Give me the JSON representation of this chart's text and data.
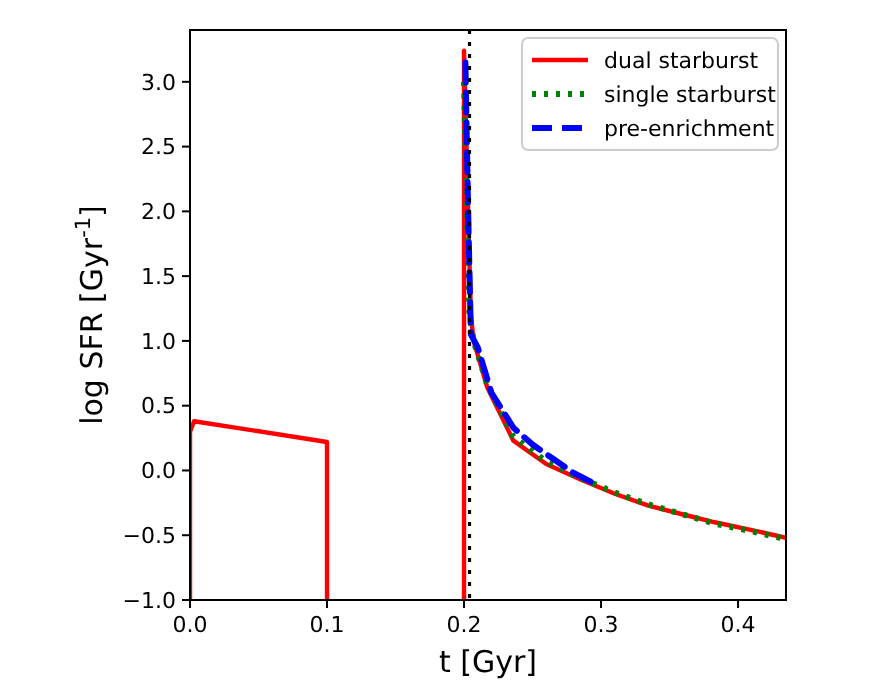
{
  "chart_data": {
    "type": "line",
    "xlabel": "t [Gyr]",
    "ylabel": "log SFR [Gyr$^{-1}$]",
    "xlim": [
      0,
      0.435
    ],
    "ylim": [
      -1.0,
      3.4
    ],
    "xticks": [
      {
        "value": 0,
        "label": "0.0"
      },
      {
        "value": 0.1,
        "label": "0.1"
      },
      {
        "value": 0.2,
        "label": "0.2"
      },
      {
        "value": 0.3,
        "label": "0.3"
      },
      {
        "value": 0.4,
        "label": "0.4"
      }
    ],
    "yticks": [
      {
        "value": -1,
        "label": "−1.0"
      },
      {
        "value": -0.5,
        "label": "−0.5"
      },
      {
        "value": 0,
        "label": "0.0"
      },
      {
        "value": 0.5,
        "label": "0.5"
      },
      {
        "value": 1,
        "label": "1.0"
      },
      {
        "value": 1.5,
        "label": "1.5"
      },
      {
        "value": 2,
        "label": "2.0"
      },
      {
        "value": 2.5,
        "label": "2.5"
      },
      {
        "value": 3,
        "label": "3.0"
      }
    ],
    "legend": "top right",
    "grid": false,
    "ref_lines": [
      {
        "axis": "x",
        "value": 0.204,
        "color": "#000000",
        "line_style": "dotted"
      }
    ],
    "series": [
      {
        "name": "dual starburst",
        "color": "#ff0000",
        "line_style": "solid",
        "x": [
          0,
          0,
          0.003,
          0.1,
          0.1,
          null,
          0.2,
          0.2,
          0.203,
          0.205,
          0.207,
          0.217,
          0.236,
          0.26,
          0.285,
          0.31,
          0.334,
          0.36,
          0.383,
          0.41,
          0.435
        ],
        "values": [
          -1,
          0.3,
          0.38,
          0.22,
          -1,
          null,
          -1,
          3.24,
          2.0,
          1.2,
          1.0,
          0.64,
          0.23,
          0.05,
          -0.07,
          -0.18,
          -0.27,
          -0.34,
          -0.4,
          -0.46,
          -0.52
        ]
      },
      {
        "name": "single starburst",
        "color": "#008000",
        "line_style": "dotted",
        "x": [
          0.2,
          0.202,
          0.204,
          0.207,
          0.217,
          0.236,
          0.26,
          0.285,
          0.31,
          0.334,
          0.36,
          0.383,
          0.41,
          0.435
        ],
        "values": [
          3.0,
          2.0,
          1.2,
          1.0,
          0.66,
          0.26,
          0.07,
          -0.06,
          -0.17,
          -0.26,
          -0.34,
          -0.41,
          -0.47,
          -0.53
        ]
      },
      {
        "name": "pre-enrichment",
        "color": "#0000ff",
        "line_style": "dashed",
        "x": [
          0.201,
          0.203,
          0.205,
          0.21,
          0.22,
          0.236,
          0.25,
          0.265,
          0.28,
          0.295
        ],
        "values": [
          3.15,
          2.0,
          1.05,
          0.95,
          0.6,
          0.33,
          0.2,
          0.09,
          -0.02,
          -0.1
        ]
      }
    ]
  }
}
